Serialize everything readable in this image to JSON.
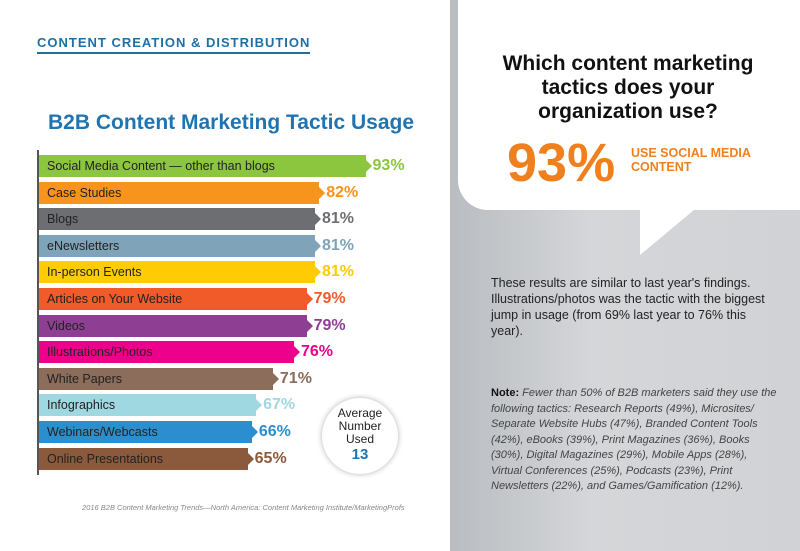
{
  "section_title": "CONTENT CREATION & DISTRIBUTION",
  "chart_data": {
    "type": "bar",
    "title": "B2B Content Marketing Tactic Usage",
    "categories": [
      "Social Media Content — other than blogs",
      "Case Studies",
      "Blogs",
      "eNewsletters",
      "In-person Events",
      "Articles on Your Website",
      "Videos",
      "Illustrations/Photos",
      "White Papers",
      "Infographics",
      "Webinars/Webcasts",
      "Online Presentations"
    ],
    "values": [
      93,
      82,
      81,
      81,
      81,
      79,
      79,
      76,
      71,
      67,
      66,
      65
    ],
    "labels": [
      "93%",
      "82%",
      "81%",
      "81%",
      "81%",
      "79%",
      "79%",
      "76%",
      "71%",
      "67%",
      "66%",
      "65%"
    ],
    "colors": [
      "#8cc63f",
      "#f7941d",
      "#6d6e71",
      "#7fa3b8",
      "#ffcb05",
      "#f15a29",
      "#8e3f94",
      "#ec008c",
      "#8c6c5a",
      "#9fd8e0",
      "#2b8fcf",
      "#8b5a3c"
    ],
    "label_colors": [
      "#8cc63f",
      "#f7941d",
      "#6d6e71",
      "#7fa3b8",
      "#ffcb05",
      "#f15a29",
      "#8e3f94",
      "#ec008c",
      "#8c6c5a",
      "#9fd8e0",
      "#2b8fcf",
      "#8b5a3c"
    ],
    "orientation": "horizontal"
  },
  "average": {
    "line1": "Average",
    "line2": "Number",
    "line3": "Used",
    "value": "13"
  },
  "source": "2016 B2B Content Marketing Trends—North America: Content Marketing Institute/MarketingProfs",
  "question": "Which content marketing tactics does your organization use?",
  "highlight": {
    "value": "93%",
    "label": "USE SOCIAL MEDIA CONTENT"
  },
  "paragraph": "These results are similar to last year's findings. Illustrations/photos was the tactic with the biggest jump in usage (from 69% last year to 76% this year).",
  "note": {
    "label": "Note:",
    "text": " Fewer than 50% of B2B marketers said they use the following tactics: Research Reports (49%), Microsites/ Separate Website Hubs (47%), Branded Content Tools (42%), eBooks (39%), Print Magazines (36%), Books (30%), Digital Magazines (29%), Mobile Apps (28%), Virtual Conferences (25%), Podcasts (23%), Print Newsletters (22%), and Games/Gamification (12%)."
  }
}
